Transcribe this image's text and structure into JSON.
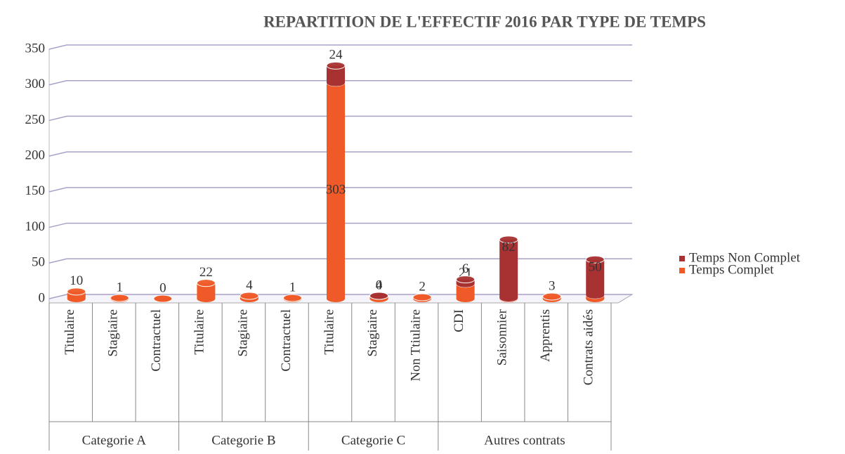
{
  "chart_data": {
    "type": "bar",
    "title": "REPARTITION DE L'EFFECTIF 2016 PAR TYPE DE TEMPS",
    "groups": [
      {
        "name": "Categorie A",
        "categories": [
          "Titulaire",
          "Stagiaire",
          "Contractuel"
        ]
      },
      {
        "name": "Categorie B",
        "categories": [
          "Titulaire",
          "Stagiaire",
          "Contractuel"
        ]
      },
      {
        "name": "Categorie C",
        "categories": [
          "Titulaire",
          "Stagiaire",
          "Non Ttiulaire"
        ]
      },
      {
        "name": "Autres contrats",
        "categories": [
          "CDI",
          "Saisonnier",
          "Apprentis",
          "Contrats aidés"
        ]
      }
    ],
    "series": [
      {
        "name": "Temps Complet",
        "color": "#f05a28",
        "values": [
          10,
          1,
          0,
          22,
          4,
          1,
          303,
          4,
          2,
          21,
          1,
          3,
          5
        ]
      },
      {
        "name": "Temps Non Complet",
        "color": "#a83232",
        "values": [
          null,
          null,
          null,
          null,
          null,
          null,
          24,
          0,
          null,
          6,
          82,
          null,
          50
        ]
      }
    ],
    "ylim": [
      0,
      350
    ],
    "yticks": [
      0,
      50,
      100,
      150,
      200,
      250,
      300,
      350
    ],
    "grid": true,
    "stacked": true,
    "legend": "right"
  }
}
